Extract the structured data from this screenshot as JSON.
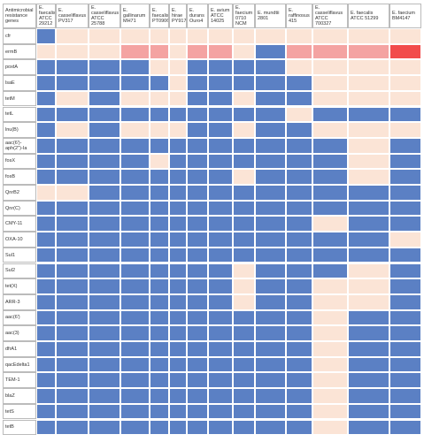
{
  "table": {
    "header": [
      "Antimicrobial resistance genes",
      "E. faecalis ATCC 29212",
      "E. casseliflavus PV317",
      "E. casseliflavus ATCC 25788",
      "E. gallinarum MH71",
      "E. faecalis PT0906",
      "E. hirae PY917",
      "E. durans Ouro4",
      "E. avium ATCC 14025",
      "E. faecium 0710 NCM",
      "E. mundtii 2801",
      "E. raffinosus 415",
      "E. casseliflavus ATCC 700327",
      "E. faecalis ATCC 51299",
      "E. faecium BM4147"
    ],
    "rows": [
      {
        "gene": "cfr",
        "cells": [
          "#5b80c4",
          "#fbe4d6",
          "#fbe4d6",
          "#fbe4d6",
          "#fbe4d6",
          "#fbe4d6",
          "#fbe4d6",
          "#fbe4d6",
          "#fbe4d6",
          "#fbe4d6",
          "#fbe4d6",
          "#fbe4d6",
          "#fbe4d6",
          "#fbe4d6"
        ]
      },
      {
        "gene": "ermB",
        "cells": [
          "#fbe4d6",
          "#fbe4d6",
          "#fbe4d6",
          "#f4a3a2",
          "#f4a3a2",
          "#fbe4d6",
          "#f4a3a2",
          "#f4a3a2",
          "#fbe4d6",
          "#5b80c4",
          "#f4a3a2",
          "#f4a3a2",
          "#f4a3a2",
          "#f24b4b"
        ]
      },
      {
        "gene": "poxtA",
        "cells": [
          "#5b80c4",
          "#5b80c4",
          "#5b80c4",
          "#5b80c4",
          "#fbe4d6",
          "#fbe4d6",
          "#5b80c4",
          "#5b80c4",
          "#5b80c4",
          "#5b80c4",
          "#fbe4d6",
          "#fbe4d6",
          "#fbe4d6",
          "#fbe4d6"
        ]
      },
      {
        "gene": "lsaE",
        "cells": [
          "#5b80c4",
          "#5b80c4",
          "#5b80c4",
          "#5b80c4",
          "#5b80c4",
          "#fbe4d6",
          "#5b80c4",
          "#5b80c4",
          "#5b80c4",
          "#5b80c4",
          "#5b80c4",
          "#fbe4d6",
          "#fbe4d6",
          "#fbe4d6"
        ]
      },
      {
        "gene": "tetM",
        "cells": [
          "#5b80c4",
          "#fbe4d6",
          "#5b80c4",
          "#fbe4d6",
          "#fbe4d6",
          "#fbe4d6",
          "#5b80c4",
          "#5b80c4",
          "#fbe4d6",
          "#5b80c4",
          "#5b80c4",
          "#fbe4d6",
          "#fbe4d6",
          "#fbe4d6"
        ]
      },
      {
        "gene": "tetL",
        "cells": [
          "#5b80c4",
          "#5b80c4",
          "#5b80c4",
          "#5b80c4",
          "#5b80c4",
          "#5b80c4",
          "#5b80c4",
          "#5b80c4",
          "#5b80c4",
          "#5b80c4",
          "#fbe4d6",
          "#5b80c4",
          "#5b80c4",
          "#5b80c4"
        ]
      },
      {
        "gene": "lnu(B)",
        "cells": [
          "#5b80c4",
          "#fbe4d6",
          "#5b80c4",
          "#fbe4d6",
          "#fbe4d6",
          "#fbe4d6",
          "#5b80c4",
          "#5b80c4",
          "#fbe4d6",
          "#5b80c4",
          "#5b80c4",
          "#fbe4d6",
          "#fbe4d6",
          "#fbe4d6"
        ]
      },
      {
        "gene": "aac(6')-aph(2'')-Ia",
        "cells": [
          "#5b80c4",
          "#5b80c4",
          "#5b80c4",
          "#5b80c4",
          "#5b80c4",
          "#5b80c4",
          "#5b80c4",
          "#5b80c4",
          "#5b80c4",
          "#5b80c4",
          "#5b80c4",
          "#5b80c4",
          "#fbe4d6",
          "#5b80c4"
        ]
      },
      {
        "gene": "fosX",
        "cells": [
          "#5b80c4",
          "#5b80c4",
          "#5b80c4",
          "#5b80c4",
          "#fbe4d6",
          "#5b80c4",
          "#5b80c4",
          "#5b80c4",
          "#5b80c4",
          "#5b80c4",
          "#5b80c4",
          "#5b80c4",
          "#fbe4d6",
          "#5b80c4"
        ]
      },
      {
        "gene": "fosB",
        "cells": [
          "#5b80c4",
          "#5b80c4",
          "#5b80c4",
          "#5b80c4",
          "#5b80c4",
          "#5b80c4",
          "#5b80c4",
          "#5b80c4",
          "#fbe4d6",
          "#5b80c4",
          "#5b80c4",
          "#5b80c4",
          "#fbe4d6",
          "#5b80c4"
        ]
      },
      {
        "gene": "QnrB2",
        "cells": [
          "#fbe4d6",
          "#fbe4d6",
          "#5b80c4",
          "#5b80c4",
          "#5b80c4",
          "#5b80c4",
          "#5b80c4",
          "#5b80c4",
          "#5b80c4",
          "#5b80c4",
          "#5b80c4",
          "#5b80c4",
          "#5b80c4",
          "#5b80c4"
        ]
      },
      {
        "gene": "Qnr(C)",
        "cells": [
          "#5b80c4",
          "#5b80c4",
          "#5b80c4",
          "#5b80c4",
          "#5b80c4",
          "#5b80c4",
          "#5b80c4",
          "#5b80c4",
          "#5b80c4",
          "#5b80c4",
          "#5b80c4",
          "#5b80c4",
          "#5b80c4",
          "#5b80c4"
        ]
      },
      {
        "gene": "CMY-11",
        "cells": [
          "#5b80c4",
          "#5b80c4",
          "#5b80c4",
          "#5b80c4",
          "#5b80c4",
          "#5b80c4",
          "#5b80c4",
          "#5b80c4",
          "#5b80c4",
          "#5b80c4",
          "#5b80c4",
          "#fbe4d6",
          "#5b80c4",
          "#5b80c4"
        ]
      },
      {
        "gene": "OXA-10",
        "cells": [
          "#5b80c4",
          "#5b80c4",
          "#5b80c4",
          "#5b80c4",
          "#5b80c4",
          "#5b80c4",
          "#5b80c4",
          "#5b80c4",
          "#5b80c4",
          "#5b80c4",
          "#5b80c4",
          "#5b80c4",
          "#5b80c4",
          "#fbe4d6"
        ]
      },
      {
        "gene": "Sul1",
        "cells": [
          "#5b80c4",
          "#5b80c4",
          "#5b80c4",
          "#5b80c4",
          "#5b80c4",
          "#5b80c4",
          "#5b80c4",
          "#5b80c4",
          "#5b80c4",
          "#5b80c4",
          "#5b80c4",
          "#5b80c4",
          "#5b80c4",
          "#5b80c4"
        ]
      },
      {
        "gene": "Sul2",
        "cells": [
          "#5b80c4",
          "#5b80c4",
          "#5b80c4",
          "#5b80c4",
          "#5b80c4",
          "#5b80c4",
          "#5b80c4",
          "#5b80c4",
          "#fbe4d6",
          "#5b80c4",
          "#5b80c4",
          "#5b80c4",
          "#fbe4d6",
          "#5b80c4"
        ]
      },
      {
        "gene": "tet(X)",
        "cells": [
          "#5b80c4",
          "#5b80c4",
          "#5b80c4",
          "#5b80c4",
          "#5b80c4",
          "#5b80c4",
          "#5b80c4",
          "#5b80c4",
          "#fbe4d6",
          "#5b80c4",
          "#5b80c4",
          "#fbe4d6",
          "#fbe4d6",
          "#5b80c4"
        ]
      },
      {
        "gene": "ARR-3",
        "cells": [
          "#5b80c4",
          "#5b80c4",
          "#5b80c4",
          "#5b80c4",
          "#5b80c4",
          "#5b80c4",
          "#5b80c4",
          "#5b80c4",
          "#fbe4d6",
          "#5b80c4",
          "#5b80c4",
          "#fbe4d6",
          "#fbe4d6",
          "#5b80c4"
        ]
      },
      {
        "gene": "aac(6')",
        "cells": [
          "#5b80c4",
          "#5b80c4",
          "#5b80c4",
          "#5b80c4",
          "#5b80c4",
          "#5b80c4",
          "#5b80c4",
          "#5b80c4",
          "#5b80c4",
          "#5b80c4",
          "#5b80c4",
          "#fbe4d6",
          "#5b80c4",
          "#5b80c4"
        ]
      },
      {
        "gene": "aac(3)",
        "cells": [
          "#5b80c4",
          "#5b80c4",
          "#5b80c4",
          "#5b80c4",
          "#5b80c4",
          "#5b80c4",
          "#5b80c4",
          "#5b80c4",
          "#5b80c4",
          "#5b80c4",
          "#5b80c4",
          "#fbe4d6",
          "#5b80c4",
          "#5b80c4"
        ]
      },
      {
        "gene": "dfrA1",
        "cells": [
          "#5b80c4",
          "#5b80c4",
          "#5b80c4",
          "#5b80c4",
          "#5b80c4",
          "#5b80c4",
          "#5b80c4",
          "#5b80c4",
          "#5b80c4",
          "#5b80c4",
          "#5b80c4",
          "#fbe4d6",
          "#5b80c4",
          "#5b80c4"
        ]
      },
      {
        "gene": "qacEdelta1",
        "cells": [
          "#5b80c4",
          "#5b80c4",
          "#5b80c4",
          "#5b80c4",
          "#5b80c4",
          "#5b80c4",
          "#5b80c4",
          "#5b80c4",
          "#5b80c4",
          "#5b80c4",
          "#5b80c4",
          "#fbe4d6",
          "#5b80c4",
          "#5b80c4"
        ]
      },
      {
        "gene": "TEM-1",
        "cells": [
          "#5b80c4",
          "#5b80c4",
          "#5b80c4",
          "#5b80c4",
          "#5b80c4",
          "#5b80c4",
          "#5b80c4",
          "#5b80c4",
          "#5b80c4",
          "#5b80c4",
          "#5b80c4",
          "#fbe4d6",
          "#5b80c4",
          "#5b80c4"
        ]
      },
      {
        "gene": "blaZ",
        "cells": [
          "#5b80c4",
          "#5b80c4",
          "#5b80c4",
          "#5b80c4",
          "#5b80c4",
          "#5b80c4",
          "#5b80c4",
          "#5b80c4",
          "#5b80c4",
          "#5b80c4",
          "#5b80c4",
          "#fbe4d6",
          "#5b80c4",
          "#5b80c4"
        ]
      },
      {
        "gene": "tetS",
        "cells": [
          "#5b80c4",
          "#5b80c4",
          "#5b80c4",
          "#5b80c4",
          "#5b80c4",
          "#5b80c4",
          "#5b80c4",
          "#5b80c4",
          "#5b80c4",
          "#5b80c4",
          "#5b80c4",
          "#fbe4d6",
          "#5b80c4",
          "#5b80c4"
        ]
      },
      {
        "gene": "tetB",
        "cells": [
          "#5b80c4",
          "#5b80c4",
          "#5b80c4",
          "#5b80c4",
          "#5b80c4",
          "#5b80c4",
          "#5b80c4",
          "#5b80c4",
          "#5b80c4",
          "#5b80c4",
          "#5b80c4",
          "#fbe4d6",
          "#5b80c4",
          "#5b80c4"
        ]
      }
    ]
  }
}
